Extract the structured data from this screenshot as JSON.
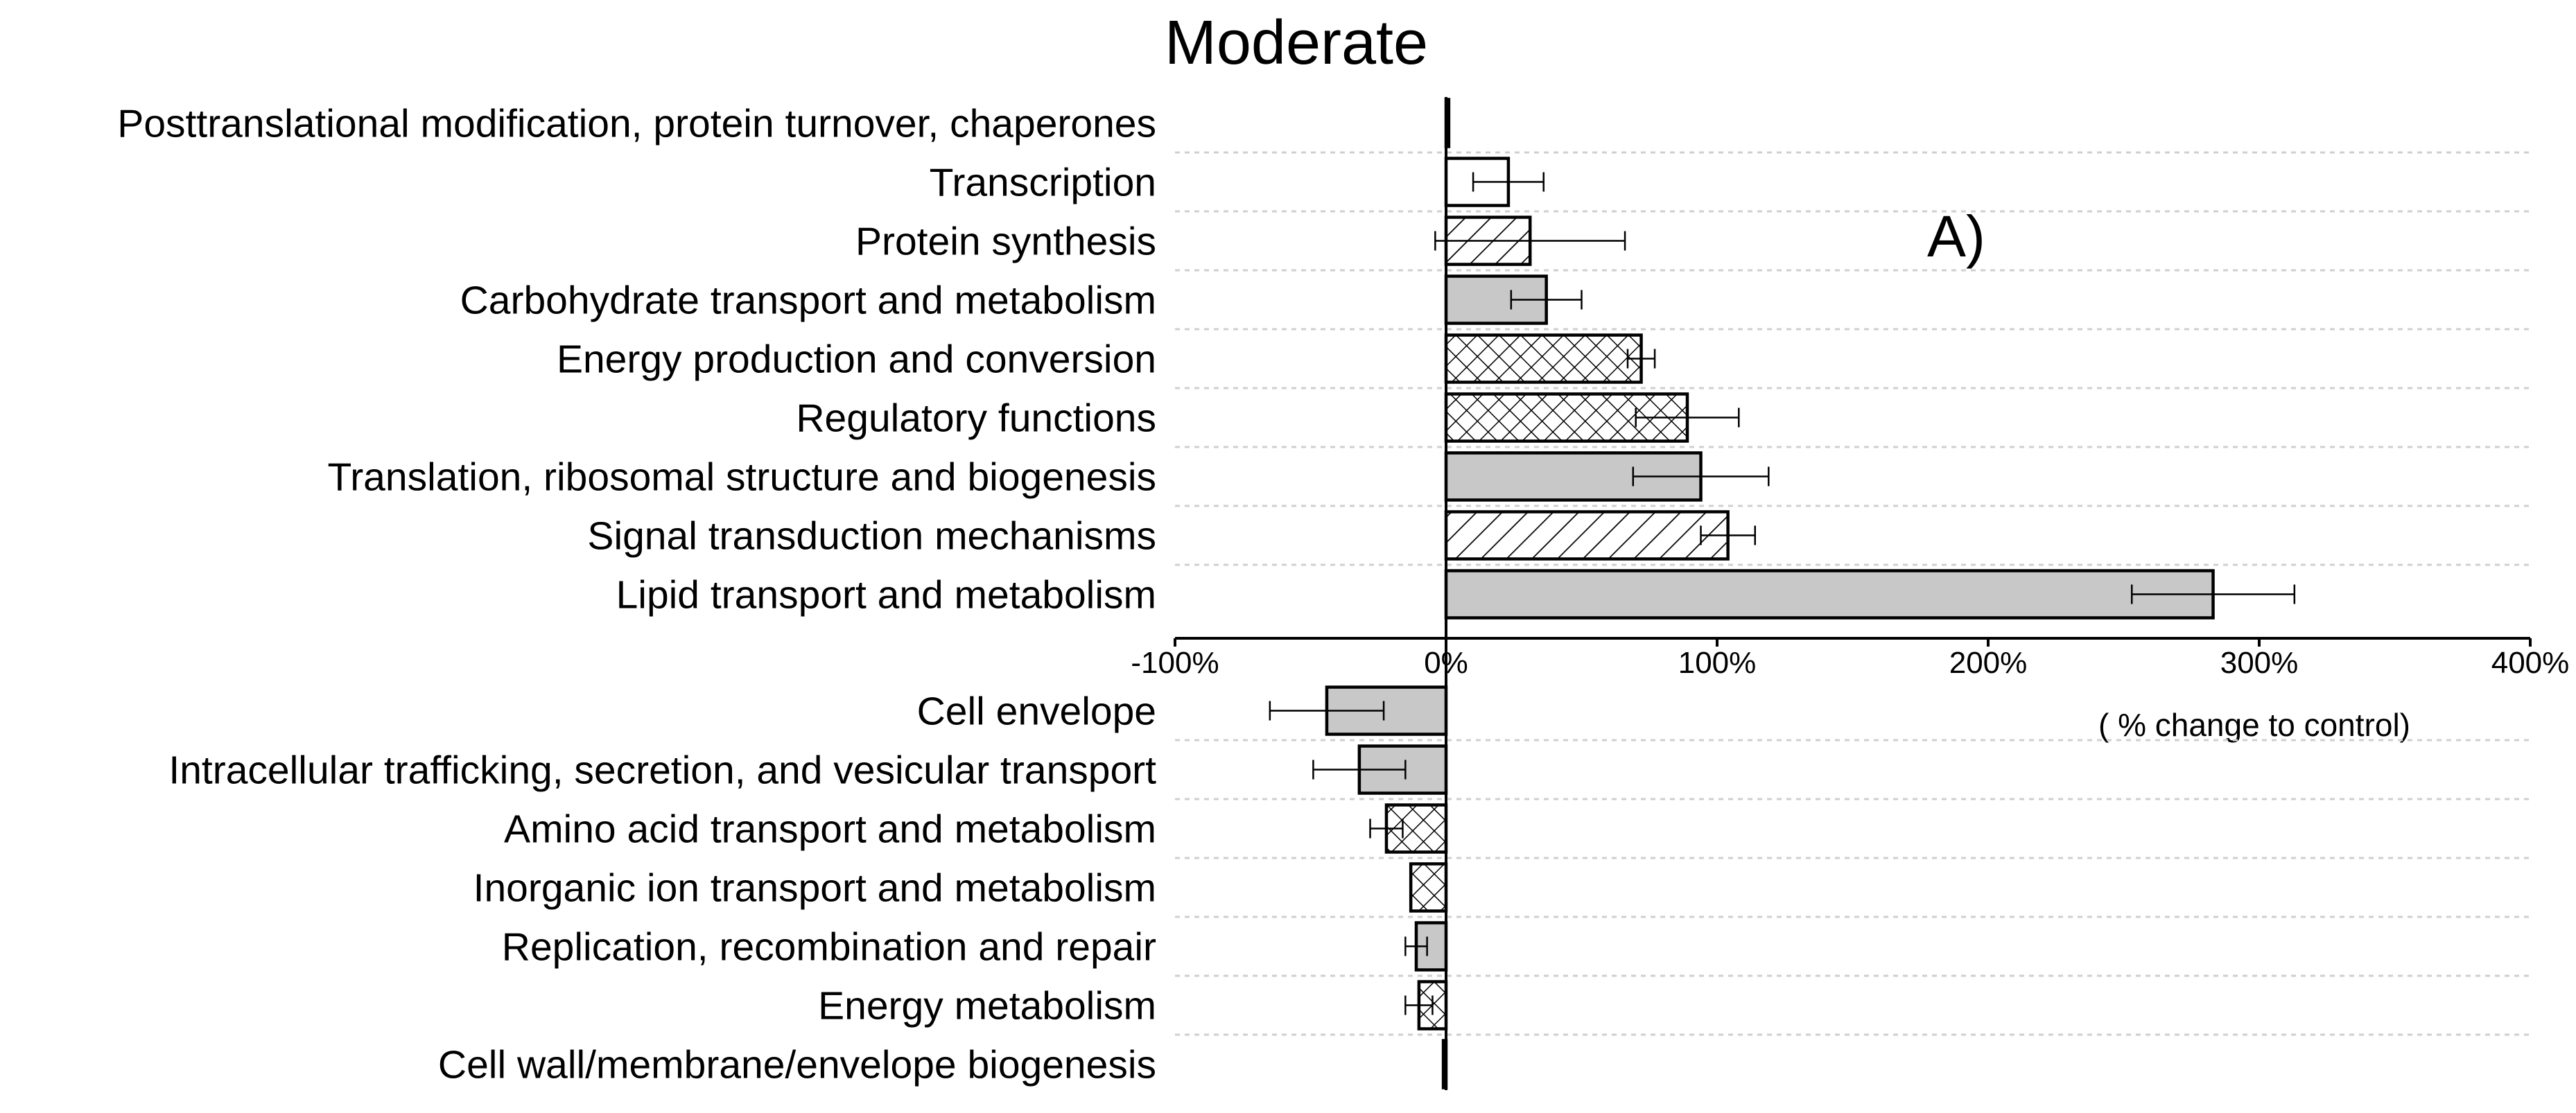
{
  "chart_data": {
    "type": "bar",
    "orientation": "horizontal",
    "title": "Moderate",
    "panel_label": "A)",
    "xlabel": "( % change to control)",
    "xlim": [
      -100,
      400
    ],
    "xticks": [
      -100,
      0,
      100,
      200,
      300,
      400
    ],
    "xtick_labels": [
      "-100%",
      "0%",
      "100%",
      "200%",
      "300%",
      "400%"
    ],
    "fills": {
      "gray": "#c8c8c8",
      "white": "#ffffff",
      "line": "#000000"
    },
    "positive": [
      {
        "category": "Posttranslational modification, protein turnover, chaperones",
        "value": 1,
        "err": 0,
        "fill": "white"
      },
      {
        "category": "Transcription",
        "value": 23,
        "err": 13,
        "fill": "white"
      },
      {
        "category": "Protein synthesis",
        "value": 31,
        "err": 35,
        "fill": "diagonal"
      },
      {
        "category": "Carbohydrate transport and metabolism",
        "value": 37,
        "err": 13,
        "fill": "gray"
      },
      {
        "category": "Energy production and conversion",
        "value": 72,
        "err": 5,
        "fill": "crosshatch"
      },
      {
        "category": "Regulatory functions",
        "value": 89,
        "err": 19,
        "fill": "crosshatch"
      },
      {
        "category": "Translation, ribosomal structure and biogenesis",
        "value": 94,
        "err": 25,
        "fill": "gray"
      },
      {
        "category": "Signal transduction mechanisms",
        "value": 104,
        "err": 10,
        "fill": "diagonal"
      },
      {
        "category": "Lipid transport and metabolism",
        "value": 283,
        "err": 30,
        "fill": "gray"
      }
    ],
    "negative": [
      {
        "category": "Cell envelope",
        "value": -44,
        "err": 21,
        "fill": "gray"
      },
      {
        "category": "Intracellular trafficking, secretion, and vesicular transport",
        "value": -32,
        "err": 17,
        "fill": "gray"
      },
      {
        "category": "Amino acid transport and metabolism",
        "value": -22,
        "err": 6,
        "fill": "crosshatch"
      },
      {
        "category": "Inorganic ion transport and metabolism",
        "value": -13,
        "err": 0,
        "fill": "crosshatch"
      },
      {
        "category": "Replication, recombination and repair",
        "value": -11,
        "err": 4,
        "fill": "gray"
      },
      {
        "category": "Energy metabolism",
        "value": -10,
        "err": 5,
        "fill": "crosshatch"
      },
      {
        "category": "Cell wall/membrane/envelope biogenesis",
        "value": -1,
        "err": 0,
        "fill": "gray"
      }
    ]
  }
}
